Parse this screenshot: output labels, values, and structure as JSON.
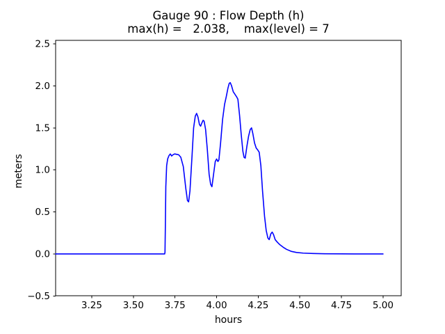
{
  "figure": {
    "background": "#ffffff",
    "title": "Gauge 90 : Flow Depth (h)",
    "subtitle": "max(h) =   2.038,    max(level) = 7"
  },
  "chart_data": {
    "type": "line",
    "title": "Gauge 90 : Flow Depth (h)",
    "subtitle": "max(h) =   2.038,    max(level) = 7",
    "xlabel": "hours",
    "ylabel": "meters",
    "xlim": [
      3.033,
      5.109
    ],
    "ylim": [
      -0.497,
      2.541
    ],
    "xticks": [
      3.25,
      3.5,
      3.75,
      4.0,
      4.25,
      4.5,
      4.75,
      5.0
    ],
    "xtick_labels": [
      "3.25",
      "3.50",
      "3.75",
      "4.00",
      "4.25",
      "4.50",
      "4.75",
      "5.00"
    ],
    "yticks": [
      -0.5,
      0.0,
      0.5,
      1.0,
      1.5,
      2.0,
      2.5
    ],
    "ytick_labels": [
      "−0.5",
      "0.0",
      "0.5",
      "1.0",
      "1.5",
      "2.0",
      "2.5"
    ],
    "grid": false,
    "legend": "none",
    "line_color": "#0000ff",
    "text_color": "#000000",
    "spine_color": "#000000",
    "annotations": {
      "max_h": 2.038,
      "max_level": 7,
      "gauge": 90
    },
    "series": [
      {
        "name": "flow-depth-h",
        "x": [
          3.033,
          3.1,
          3.2,
          3.3,
          3.4,
          3.5,
          3.6,
          3.65,
          3.688,
          3.69,
          3.692,
          3.695,
          3.7,
          3.706,
          3.714,
          3.722,
          3.73,
          3.738,
          3.748,
          3.76,
          3.772,
          3.785,
          3.8,
          3.815,
          3.825,
          3.832,
          3.84,
          3.852,
          3.862,
          3.872,
          3.88,
          3.888,
          3.897,
          3.904,
          3.912,
          3.919,
          3.925,
          3.934,
          3.944,
          3.955,
          3.964,
          3.972,
          3.982,
          3.992,
          4.0,
          4.008,
          4.014,
          4.024,
          4.036,
          4.048,
          4.058,
          4.068,
          4.076,
          4.082,
          4.09,
          4.1,
          4.11,
          4.12,
          4.128,
          4.138,
          4.148,
          4.158,
          4.165,
          4.172,
          4.182,
          4.192,
          4.202,
          4.21,
          4.218,
          4.228,
          4.238,
          4.248,
          4.256,
          4.266,
          4.276,
          4.288,
          4.298,
          4.308,
          4.316,
          4.326,
          4.334,
          4.342,
          4.352,
          4.365,
          4.38,
          4.4,
          4.42,
          4.45,
          4.48,
          4.52,
          4.58,
          4.65,
          4.75,
          4.87,
          5.0
        ],
        "y": [
          0,
          0,
          0,
          0,
          0,
          0,
          0,
          0,
          0,
          0.02,
          0.3,
          0.8,
          1.05,
          1.13,
          1.17,
          1.19,
          1.165,
          1.18,
          1.19,
          1.185,
          1.18,
          1.15,
          1.04,
          0.78,
          0.635,
          0.62,
          0.75,
          1.15,
          1.5,
          1.64,
          1.672,
          1.63,
          1.54,
          1.52,
          1.56,
          1.59,
          1.58,
          1.48,
          1.25,
          0.95,
          0.83,
          0.8,
          0.95,
          1.1,
          1.13,
          1.1,
          1.12,
          1.32,
          1.6,
          1.78,
          1.87,
          1.97,
          2.03,
          2.038,
          2.0,
          1.93,
          1.9,
          1.87,
          1.84,
          1.65,
          1.42,
          1.22,
          1.15,
          1.14,
          1.28,
          1.4,
          1.48,
          1.5,
          1.43,
          1.32,
          1.26,
          1.235,
          1.21,
          1.05,
          0.75,
          0.45,
          0.28,
          0.19,
          0.17,
          0.24,
          0.26,
          0.23,
          0.17,
          0.14,
          0.11,
          0.08,
          0.055,
          0.03,
          0.018,
          0.01,
          0.005,
          0.002,
          0.001,
          0.0,
          0.0
        ]
      }
    ]
  }
}
